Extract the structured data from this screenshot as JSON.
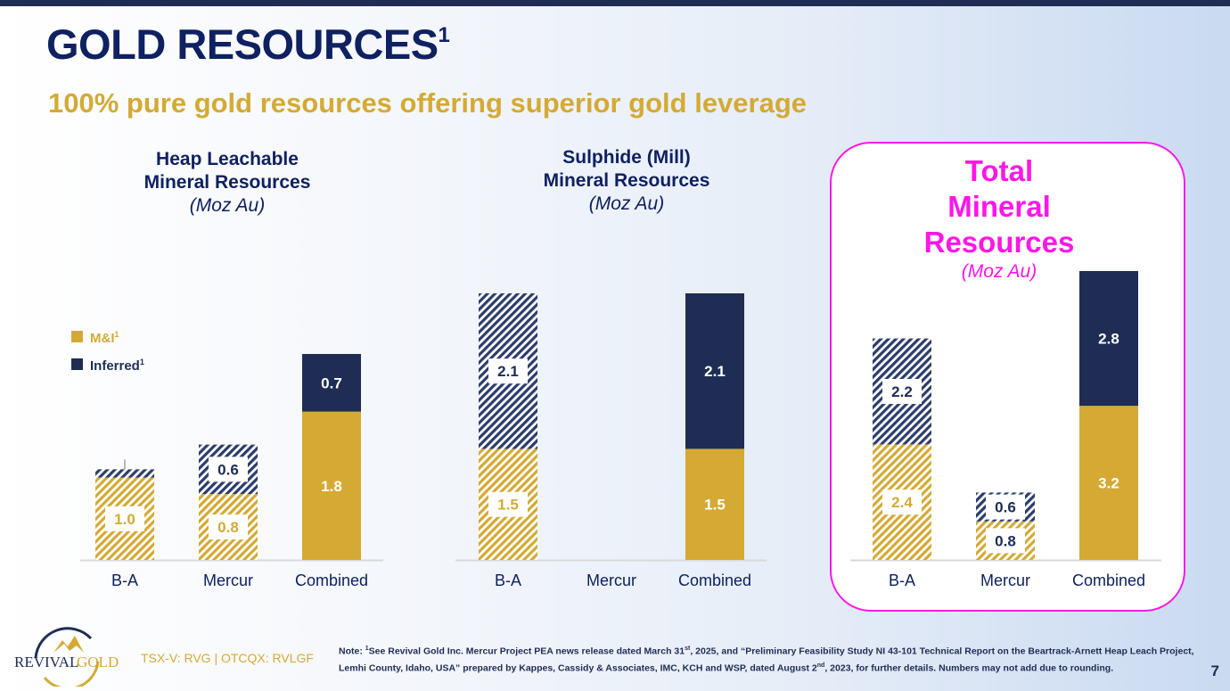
{
  "slide": {
    "title": "GOLD RESOURCES",
    "title_footnote": "1",
    "subtitle": "100% pure gold resources offering superior gold leverage",
    "page_number": "7"
  },
  "legend": {
    "items": [
      {
        "label": "M&I",
        "footnote": "1",
        "color": "#d4aa35"
      },
      {
        "label": "Inferred",
        "footnote": "1",
        "color": "#1f2d54"
      }
    ]
  },
  "colors": {
    "gold": "#d4aa35",
    "navy": "#1f2d54",
    "title_navy": "#0f2160",
    "highlight_magenta": "#ff16e8",
    "axis_line": "#d9d9d9"
  },
  "chart_data": [
    {
      "type": "bar",
      "stacked": true,
      "title_line1": "Heap Leachable",
      "title_line2": "Mineral Resources",
      "unit": "(Moz Au)",
      "categories": [
        "B-A",
        "Mercur",
        "Combined"
      ],
      "hatched": [
        true,
        true,
        false
      ],
      "series": [
        {
          "name": "M&I",
          "values": [
            1.0,
            0.8,
            1.8
          ],
          "labels": [
            "1.0",
            "0.8",
            "1.8"
          ]
        },
        {
          "name": "Inferred",
          "values": [
            0.1,
            0.6,
            0.7
          ],
          "labels": [
            "",
            "0.6",
            "0.7"
          ]
        }
      ],
      "ylim": [
        0,
        2.5
      ]
    },
    {
      "type": "bar",
      "stacked": true,
      "title_line1": "Sulphide (Mill)",
      "title_line2": "Mineral Resources",
      "unit": "(Moz Au)",
      "categories": [
        "B-A",
        "Mercur",
        "Combined"
      ],
      "hatched": [
        true,
        true,
        false
      ],
      "series": [
        {
          "name": "M&I",
          "values": [
            1.5,
            0,
            1.5
          ],
          "labels": [
            "1.5",
            "",
            "1.5"
          ]
        },
        {
          "name": "Inferred",
          "values": [
            2.1,
            0,
            2.1
          ],
          "labels": [
            "2.1",
            "",
            "2.1"
          ]
        }
      ],
      "ylim": [
        0,
        3.6
      ]
    },
    {
      "type": "bar",
      "stacked": true,
      "title_line1": "Total",
      "title_line2": "Mineral",
      "title_line3": "Resources",
      "unit": "(Moz Au)",
      "categories": [
        "B-A",
        "Mercur",
        "Combined"
      ],
      "hatched": [
        true,
        true,
        false
      ],
      "series": [
        {
          "name": "M&I",
          "values": [
            2.4,
            0.8,
            3.2
          ],
          "labels": [
            "2.4",
            "0.8",
            "3.2"
          ]
        },
        {
          "name": "Inferred",
          "values": [
            2.2,
            0.6,
            2.8
          ],
          "labels": [
            "2.2",
            "0.6",
            "2.8"
          ]
        }
      ],
      "ylim": [
        0,
        6.0
      ]
    }
  ],
  "footer": {
    "logo_word1": "REVIVAL",
    "logo_word2": "GOLD",
    "ticker": "TSX-V: RVG | OTCQX: RVLGF",
    "note_prefix": "Note:  ",
    "note_sup": "1",
    "note_part1": "See Revival Gold Inc. Mercur Project PEA news release dated March 31",
    "note_sup2": "st",
    "note_part2": ", 2025, and “Preliminary Feasibility Study NI 43-101 Technical Report on the Beartrack-Arnett Heap Leach Project, Lemhi County, Idaho, USA” prepared by Kappes, Cassidy & Associates, IMC, KCH and WSP, dated August 2",
    "note_sup3": "nd",
    "note_part3": ", 2023, for further details. Numbers may not add due to rounding."
  }
}
